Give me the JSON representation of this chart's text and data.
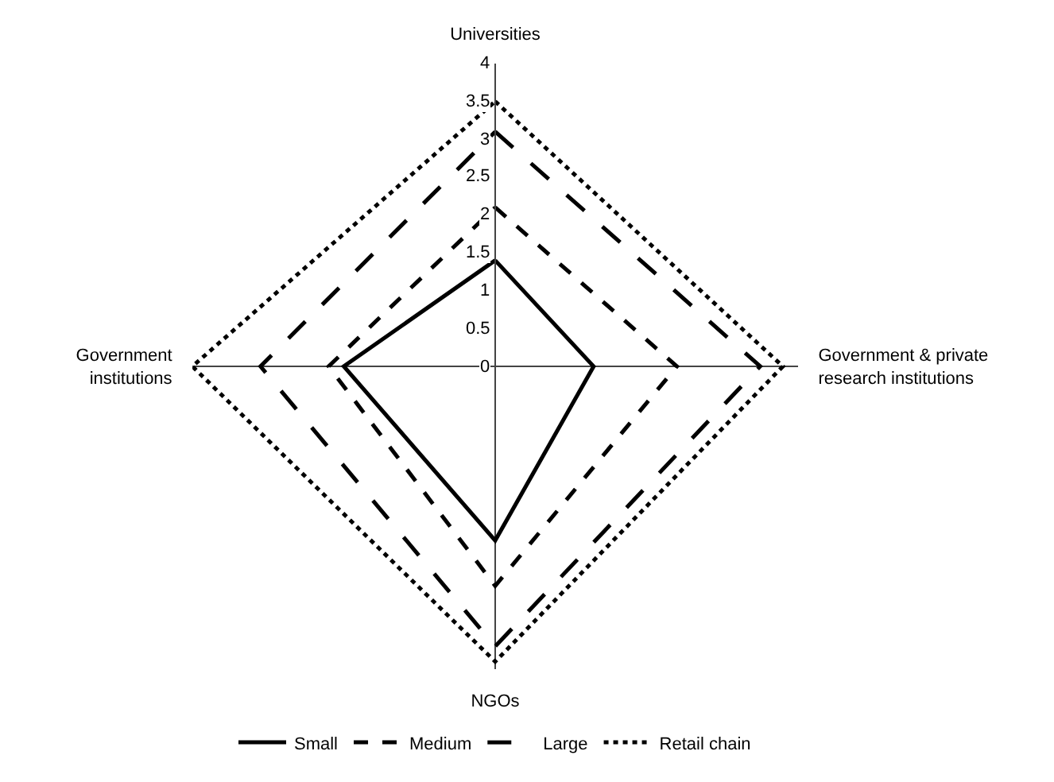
{
  "chart_data": {
    "type": "radar",
    "categories": [
      "Universities",
      "Government & private\nresearch institutions",
      "NGOs",
      "Government\ninstitutions"
    ],
    "ylim": [
      0,
      4
    ],
    "yticks": [
      0,
      0.5,
      1,
      1.5,
      2,
      2.5,
      3,
      3.5,
      4
    ],
    "grid": "x",
    "legend": "bottom",
    "series": [
      {
        "name": "Small",
        "color": "#000000",
        "line_style": "solid",
        "values": [
          1.4,
          1.3,
          2.3,
          2.0
        ]
      },
      {
        "name": "Medium",
        "color": "#000000",
        "line_style": "dashed",
        "values": [
          2.1,
          2.4,
          2.9,
          2.2
        ]
      },
      {
        "name": "Large",
        "color": "#000000",
        "line_style": "longdash",
        "values": [
          3.1,
          3.5,
          3.7,
          3.1
        ]
      },
      {
        "name": "Retail chain",
        "color": "#000000",
        "line_style": "dotted",
        "values": [
          3.5,
          3.8,
          3.9,
          4.0
        ]
      }
    ]
  }
}
